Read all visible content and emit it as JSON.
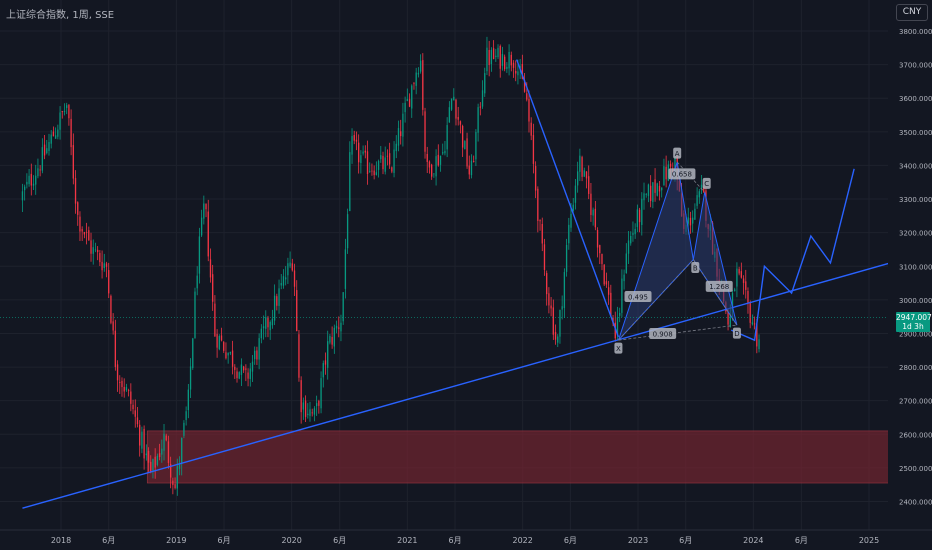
{
  "header": {
    "title": "上证综合指数, 1周, SSE"
  },
  "currency_button": "CNY",
  "last_price": {
    "value": "2947.0078",
    "countdown": "1d 3h"
  },
  "colors": {
    "background": "#131722",
    "grid": "#1e222d",
    "up": "#089981",
    "down": "#f23645",
    "trendline": "#2962ff",
    "zone_fill": "#7a2531",
    "pattern_fill": "#2a3a6e"
  },
  "chart_data": {
    "type": "candlestick",
    "symbol": "上证综合指数",
    "interval": "1周",
    "exchange": "SSE",
    "y_ticks": [
      "2400.0000",
      "2500.0000",
      "2600.0000",
      "2700.0000",
      "2800.0000",
      "2900.0000",
      "3000.0000",
      "3100.0000",
      "3200.0000",
      "3300.0000",
      "3400.0000",
      "3500.0000",
      "3600.0000",
      "3700.0000",
      "3800.0000"
    ],
    "y_tick_values": [
      2400,
      2500,
      2600,
      2700,
      2800,
      2900,
      3000,
      3100,
      3200,
      3300,
      3400,
      3500,
      3600,
      3700,
      3800
    ],
    "x_ticks": [
      "2018",
      "6月",
      "2019",
      "6月",
      "2020",
      "6月",
      "2021",
      "6月",
      "2022",
      "6月",
      "2023",
      "6月",
      "2024",
      "6月",
      "2025"
    ],
    "x_tick_dates": [
      "2018-01-01",
      "2018-06-01",
      "2019-01-01",
      "2019-06-01",
      "2020-01-01",
      "2020-06-01",
      "2021-01-01",
      "2021-06-01",
      "2022-01-01",
      "2022-06-01",
      "2023-01-01",
      "2023-06-01",
      "2024-01-01",
      "2024-06-01",
      "2025-01-01"
    ],
    "price_path": [
      [
        "2017-09-01",
        3300
      ],
      [
        "2017-11-15",
        3430
      ],
      [
        "2018-01-26",
        3580
      ],
      [
        "2018-03-01",
        3250
      ],
      [
        "2018-04-15",
        3150
      ],
      [
        "2018-06-01",
        3100
      ],
      [
        "2018-07-01",
        2800
      ],
      [
        "2018-08-15",
        2700
      ],
      [
        "2018-10-19",
        2480
      ],
      [
        "2018-12-01",
        2590
      ],
      [
        "2019-01-04",
        2440
      ],
      [
        "2019-02-15",
        2700
      ],
      [
        "2019-03-15",
        3100
      ],
      [
        "2019-04-08",
        3290
      ],
      [
        "2019-05-10",
        2900
      ],
      [
        "2019-06-10",
        2860
      ],
      [
        "2019-08-15",
        2760
      ],
      [
        "2019-11-01",
        2950
      ],
      [
        "2020-01-13",
        3130
      ],
      [
        "2020-02-03",
        2700
      ],
      [
        "2020-03-23",
        2650
      ],
      [
        "2020-05-01",
        2860
      ],
      [
        "2020-06-15",
        2950
      ],
      [
        "2020-07-13",
        3460
      ],
      [
        "2020-09-01",
        3400
      ],
      [
        "2020-11-20",
        3400
      ],
      [
        "2021-01-01",
        3560
      ],
      [
        "2021-02-18",
        3730
      ],
      [
        "2021-03-09",
        3380
      ],
      [
        "2021-05-01",
        3440
      ],
      [
        "2021-06-01",
        3620
      ],
      [
        "2021-07-27",
        3360
      ],
      [
        "2021-09-13",
        3720
      ],
      [
        "2021-12-13",
        3720
      ],
      [
        "2022-01-20",
        3600
      ],
      [
        "2022-03-15",
        3100
      ],
      [
        "2022-04-27",
        2860
      ],
      [
        "2022-06-01",
        3200
      ],
      [
        "2022-07-05",
        3420
      ],
      [
        "2022-08-20",
        3250
      ],
      [
        "2022-10-31",
        2880
      ],
      [
        "2022-12-01",
        3150
      ],
      [
        "2023-02-01",
        3300
      ],
      [
        "2023-05-05",
        3410
      ],
      [
        "2023-06-01",
        3200
      ],
      [
        "2023-07-31",
        3320
      ],
      [
        "2023-09-15",
        3100
      ],
      [
        "2023-10-23",
        2920
      ],
      [
        "2023-11-15",
        3080
      ],
      [
        "2024-01-01",
        2950
      ],
      [
        "2024-01-19",
        2890
      ]
    ],
    "candle_interval_days": 7,
    "support_trendline": {
      "from": [
        "2017-09-01",
        2380
      ],
      "to": [
        "2025-07-01",
        3140
      ]
    },
    "support_zone": {
      "x_from": "2018-10-01",
      "x_to": "2025-07-01",
      "y_from": 2455,
      "y_to": 2610
    },
    "drop_line": {
      "from": [
        "2021-12-13",
        3715
      ],
      "to": [
        "2022-10-31",
        2890
      ]
    },
    "harmonic_pattern": {
      "points": [
        {
          "label": "X",
          "date": "2022-10-31",
          "price": 2880
        },
        {
          "label": "A",
          "date": "2023-05-05",
          "price": 3410
        },
        {
          "label": "B",
          "date": "2023-06-25",
          "price": 3120
        },
        {
          "label": "C",
          "date": "2023-07-31",
          "price": 3320
        },
        {
          "label": "D",
          "date": "2023-11-10",
          "price": 2925
        }
      ],
      "ratios": [
        {
          "label": "0.658",
          "date": "2023-05-20",
          "price": 3375
        },
        {
          "label": "0.495",
          "date": "2023-01-01",
          "price": 3010
        },
        {
          "label": "1.268",
          "date": "2023-09-15",
          "price": 3040
        },
        {
          "label": "0.908",
          "date": "2023-03-20",
          "price": 2900
        }
      ]
    },
    "projection_path": [
      [
        "2023-10-23",
        2910
      ],
      [
        "2024-01-05",
        2880
      ],
      [
        "2024-02-05",
        3100
      ],
      [
        "2024-05-01",
        3020
      ],
      [
        "2024-07-01",
        3190
      ],
      [
        "2024-09-01",
        3110
      ],
      [
        "2024-11-15",
        3390
      ]
    ]
  }
}
